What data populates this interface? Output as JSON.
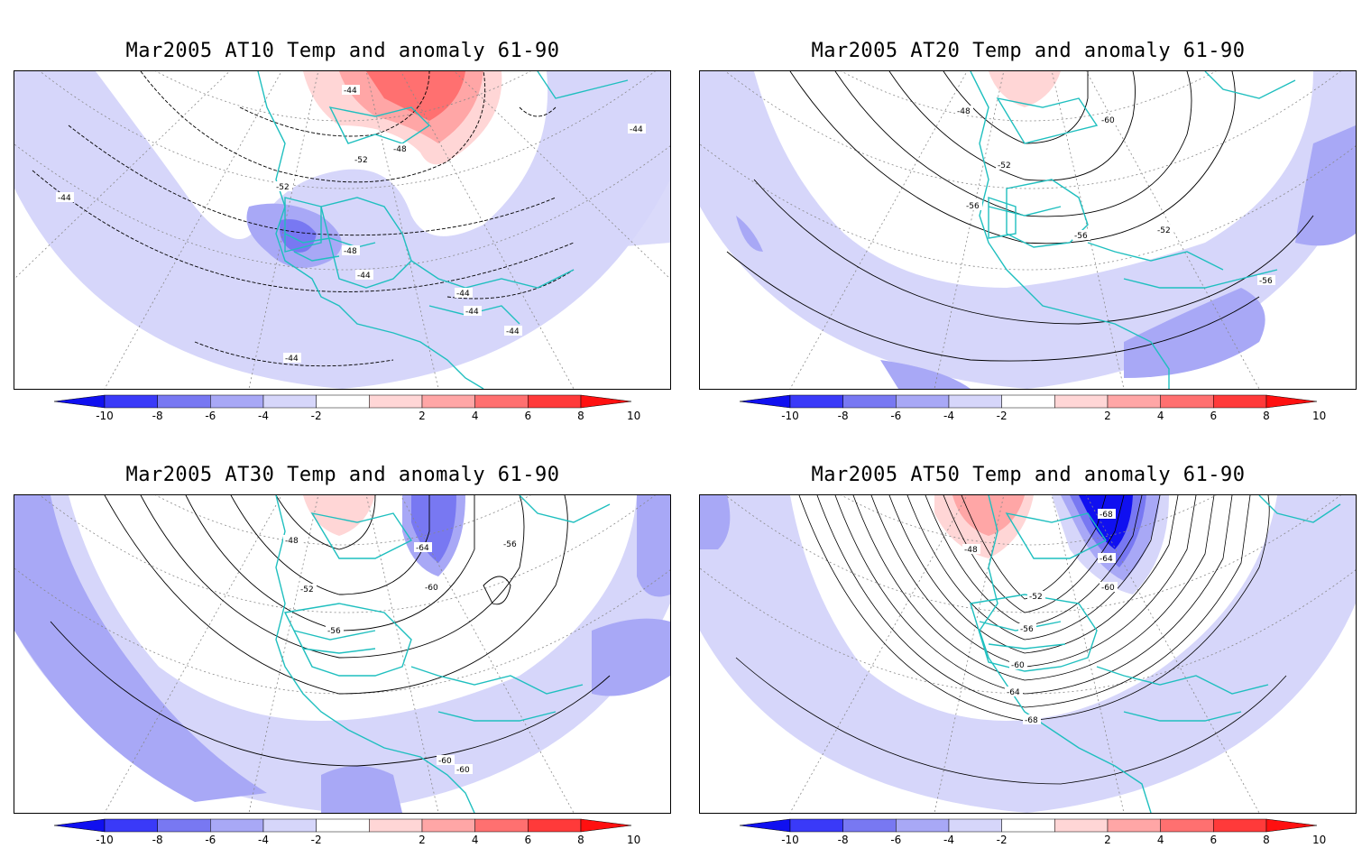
{
  "panels": [
    {
      "title": "Mar2005 AT10 Temp and anomaly 61-90",
      "contour_labels": [
        "-44",
        "-48",
        "-52",
        "-52",
        "-44",
        "-48",
        "-44",
        "-44",
        "-44",
        "-44",
        "-44",
        "-44"
      ]
    },
    {
      "title": "Mar2005 AT20 Temp and anomaly 61-90",
      "contour_labels": [
        "-48",
        "-60",
        "-52",
        "-56",
        "-56",
        "-52",
        "-56"
      ]
    },
    {
      "title": "Mar2005 AT30 Temp and anomaly 61-90",
      "contour_labels": [
        "-48",
        "-64",
        "-56",
        "-52",
        "-60",
        "-56",
        "-60",
        "-60"
      ]
    },
    {
      "title": "Mar2005 AT50 Temp and anomaly 61-90",
      "contour_labels": [
        "-68",
        "-48",
        "-64",
        "-52",
        "-60",
        "-56",
        "-60",
        "-64",
        "-68"
      ]
    }
  ],
  "colorbar": {
    "labels": [
      "-10",
      "-8",
      "-6",
      "-4",
      "-2",
      "2",
      "4",
      "6",
      "8",
      "10"
    ],
    "colors": [
      "#1010f0",
      "#3a3af8",
      "#7878f2",
      "#a8a8f6",
      "#d6d6fa",
      "#ffffff",
      "#ffd6d6",
      "#ffa6a6",
      "#ff7070",
      "#ff3a3a",
      "#ff1010"
    ]
  },
  "colors": {
    "coastline": "#1fbfbf",
    "contour": "#000000",
    "grid": "#888888"
  }
}
